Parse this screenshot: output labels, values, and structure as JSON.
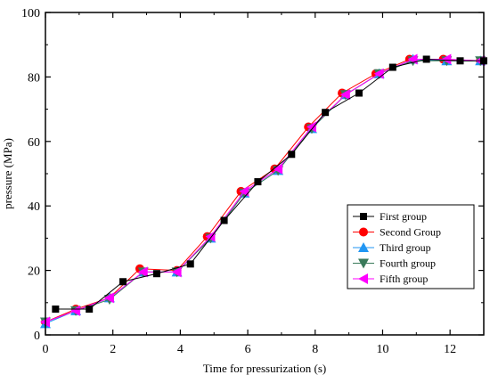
{
  "chart_data": {
    "type": "line",
    "xlabel": "Time for pressurization (s)",
    "ylabel": "pressure (MPa)",
    "xlim": [
      0,
      13
    ],
    "ylim": [
      0,
      100
    ],
    "xticks": [
      0,
      2,
      4,
      6,
      8,
      10,
      12
    ],
    "yticks": [
      0,
      20,
      40,
      60,
      80,
      100
    ],
    "grid": false,
    "legend_position": "center-right",
    "series": [
      {
        "name": "First group",
        "color": "#000000",
        "marker": "square",
        "x": [
          0.3,
          1.3,
          2.3,
          3.3,
          4.3,
          5.3,
          6.3,
          7.3,
          8.3,
          9.3,
          10.3,
          11.3,
          12.3,
          13.0
        ],
        "y": [
          8,
          8,
          16.5,
          19,
          22,
          35.5,
          47.5,
          56,
          69,
          75,
          83,
          85.5,
          85,
          85
        ]
      },
      {
        "name": "Second Group",
        "color": "#ff0000",
        "marker": "circle",
        "x": [
          0,
          0.9,
          1.9,
          2.8,
          3.9,
          4.8,
          5.8,
          6.8,
          7.8,
          8.8,
          9.8,
          10.8,
          11.8,
          12.9
        ],
        "y": [
          4,
          8,
          11.5,
          20.5,
          20,
          30.5,
          44.5,
          51.5,
          64.5,
          75,
          81,
          85.5,
          85.5,
          85
        ]
      },
      {
        "name": "Third group",
        "color": "#2196f3",
        "marker": "triangle-up",
        "x": [
          0,
          0.9,
          1.9,
          2.9,
          3.9,
          4.9,
          5.9,
          6.9,
          7.9,
          8.9,
          9.9,
          10.9,
          11.9,
          12.9
        ],
        "y": [
          3.5,
          7.5,
          11.5,
          19.5,
          19.5,
          30,
          44,
          51,
          64,
          74.5,
          81,
          85.5,
          85,
          85
        ]
      },
      {
        "name": "Fourth group",
        "color": "#3a7a5a",
        "marker": "triangle-down",
        "x": [
          0,
          0.9,
          1.9,
          2.9,
          3.9,
          4.9,
          5.9,
          6.9,
          7.9,
          8.9,
          9.9,
          10.9,
          11.9,
          12.9
        ],
        "y": [
          4,
          7.5,
          11,
          19.5,
          19.5,
          30,
          44,
          51,
          64,
          74.5,
          81,
          85,
          85,
          85
        ]
      },
      {
        "name": "Fifth group",
        "color": "#ff00ff",
        "marker": "triangle-left",
        "x": [
          0,
          0.9,
          1.9,
          2.9,
          3.9,
          4.9,
          5.9,
          6.9,
          7.9,
          8.9,
          9.9,
          10.9,
          11.9,
          12.9
        ],
        "y": [
          4,
          7.5,
          11.5,
          19.5,
          19.5,
          30.5,
          44.5,
          51.5,
          64.5,
          74.5,
          81,
          85.5,
          85.5,
          85
        ]
      }
    ]
  }
}
